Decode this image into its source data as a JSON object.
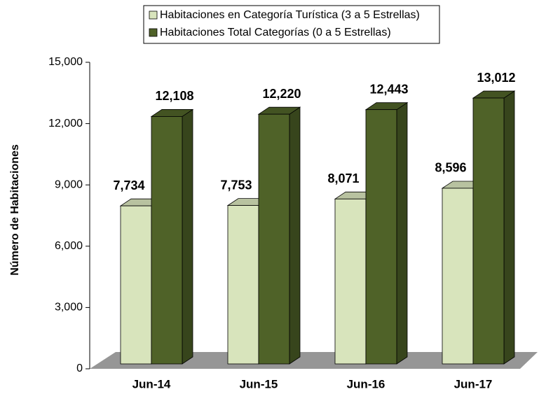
{
  "chart_data": {
    "type": "bar3d",
    "y_label": "Número de Habitaciones",
    "categories": [
      "Jun-14",
      "Jun-15",
      "Jun-16",
      "Jun-17"
    ],
    "series": [
      {
        "name": "Habitaciones en Categoría Turística (3 a 5 Estrellas)",
        "color": "#d8e4bc",
        "values": [
          7734,
          7753,
          8071,
          8596
        ],
        "value_labels": [
          "7,734",
          "7,753",
          "8,071",
          "8,596"
        ]
      },
      {
        "name": "Habitaciones Total Categorías (0 a 5 Estrellas)",
        "color": "#4f6228",
        "values": [
          12108,
          12220,
          12443,
          13012
        ],
        "value_labels": [
          "12,108",
          "12,220",
          "12,443",
          "13,012"
        ]
      }
    ],
    "ylim": [
      0,
      15000
    ],
    "yticks": [
      0,
      {
        "value": 3000,
        "label": "3,000"
      },
      {
        "value": 6000,
        "label": "6,000"
      },
      {
        "value": 9000,
        "label": "9,000"
      },
      {
        "value": 12000,
        "label": "12,000"
      },
      {
        "value": 15000,
        "label": "15,000"
      }
    ],
    "legend": "top"
  }
}
